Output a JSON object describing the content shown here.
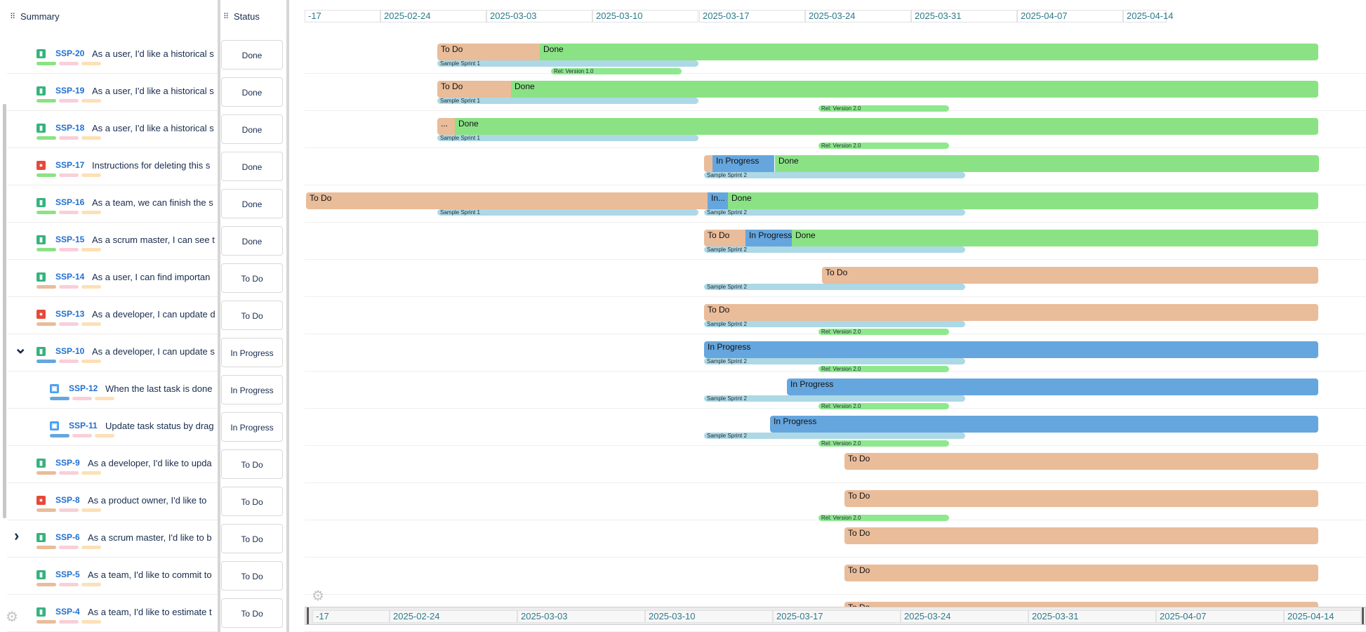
{
  "columns": {
    "summary": "Summary",
    "status": "Status"
  },
  "colors": {
    "todo": "#e9bc9a",
    "in_progress": "#66a6de",
    "done": "#8be285",
    "sprint": "#add8e6",
    "release": "#8ee88e",
    "story": "#36b37e",
    "bug": "#e5493a",
    "subtask": "#4ba0f0",
    "pill_pink": "#f9cfd9",
    "pill_peach": "#fde0b6"
  },
  "timeline": {
    "dates": [
      "-17",
      "2025-02-24",
      "2025-03-03",
      "2025-03-10",
      "2025-03-17",
      "2025-03-24",
      "2025-03-31",
      "2025-04-07",
      "2025-04-14"
    ]
  },
  "rows": [
    {
      "key": "SSP-20",
      "summary": "As a user, I'd like a historical s",
      "type": "story",
      "status": "Done",
      "caret": "",
      "indent": 0,
      "segments": [
        {
          "label": "To Do",
          "status": "todo"
        },
        {
          "label": "Done",
          "status": "done"
        }
      ],
      "sprints": [
        "Sample Sprint 1"
      ],
      "releases": [
        "Rel: Version 1.0"
      ]
    },
    {
      "key": "SSP-19",
      "summary": "As a user, I'd like a historical s",
      "type": "story",
      "status": "Done",
      "caret": "",
      "indent": 0,
      "segments": [
        {
          "label": "To Do",
          "status": "todo"
        },
        {
          "label": "Done",
          "status": "done"
        }
      ],
      "sprints": [
        "Sample Sprint 1"
      ],
      "releases": [
        "Rel: Version 2.0"
      ]
    },
    {
      "key": "SSP-18",
      "summary": "As a user, I'd like a historical s",
      "type": "story",
      "status": "Done",
      "caret": "",
      "indent": 0,
      "segments": [
        {
          "label": "...",
          "status": "todo"
        },
        {
          "label": "Done",
          "status": "done"
        }
      ],
      "sprints": [
        "Sample Sprint 1"
      ],
      "releases": [
        "Rel: Version 2.0"
      ]
    },
    {
      "key": "SSP-17",
      "summary": "Instructions for deleting this s",
      "type": "bug",
      "status": "Done",
      "caret": "",
      "indent": 0,
      "segments": [
        {
          "label": "",
          "status": "todo"
        },
        {
          "label": "In Progress",
          "status": "in_progress"
        },
        {
          "label": "Done",
          "status": "done"
        }
      ],
      "sprints": [
        "Sample Sprint 2"
      ],
      "releases": []
    },
    {
      "key": "SSP-16",
      "summary": "As a team, we can finish the s",
      "type": "story",
      "status": "Done",
      "caret": "",
      "indent": 0,
      "segments": [
        {
          "label": "To Do",
          "status": "todo"
        },
        {
          "label": "In...",
          "status": "in_progress"
        },
        {
          "label": "Done",
          "status": "done"
        }
      ],
      "sprints": [
        "Sample Sprint 1",
        "Sample Sprint 2"
      ],
      "releases": []
    },
    {
      "key": "SSP-15",
      "summary": "As a scrum master, I can see t",
      "type": "story",
      "status": "Done",
      "caret": "",
      "indent": 0,
      "segments": [
        {
          "label": "To Do",
          "status": "todo"
        },
        {
          "label": "In Progress",
          "status": "in_progress"
        },
        {
          "label": "Done",
          "status": "done"
        }
      ],
      "sprints": [
        "Sample Sprint 2"
      ],
      "releases": []
    },
    {
      "key": "SSP-14",
      "summary": "As a user, I can find importan",
      "type": "story",
      "status": "To Do",
      "caret": "",
      "indent": 0,
      "segments": [
        {
          "label": "To Do",
          "status": "todo"
        }
      ],
      "sprints": [
        "Sample Sprint 2"
      ],
      "releases": []
    },
    {
      "key": "SSP-13",
      "summary": "As a developer, I can update d",
      "type": "bug",
      "status": "To Do",
      "caret": "",
      "indent": 0,
      "segments": [
        {
          "label": "To Do",
          "status": "todo"
        }
      ],
      "sprints": [
        "Sample Sprint 2"
      ],
      "releases": [
        "Rel: Version 2.0"
      ]
    },
    {
      "key": "SSP-10",
      "summary": "As a developer, I can update s",
      "type": "story",
      "status": "In Progress",
      "caret": "expanded",
      "indent": 0,
      "segments": [
        {
          "label": "In Progress",
          "status": "in_progress"
        }
      ],
      "sprints": [
        "Sample Sprint 2"
      ],
      "releases": [
        "Rel: Version 2.0"
      ]
    },
    {
      "key": "SSP-12",
      "summary": "When the last task is done",
      "type": "subtask",
      "status": "In Progress",
      "caret": "",
      "indent": 1,
      "segments": [
        {
          "label": "In Progress",
          "status": "in_progress"
        }
      ],
      "sprints": [
        "Sample Sprint 2"
      ],
      "releases": [
        "Rel: Version 2.0"
      ]
    },
    {
      "key": "SSP-11",
      "summary": "Update task status by drag",
      "type": "subtask",
      "status": "In Progress",
      "caret": "",
      "indent": 1,
      "segments": [
        {
          "label": "In Progress",
          "status": "in_progress"
        }
      ],
      "sprints": [
        "Sample Sprint 2"
      ],
      "releases": [
        "Rel: Version 2.0"
      ]
    },
    {
      "key": "SSP-9",
      "summary": "As a developer, I'd like to upda",
      "type": "story",
      "status": "To Do",
      "caret": "",
      "indent": 0,
      "segments": [
        {
          "label": "To Do",
          "status": "todo"
        }
      ],
      "sprints": [],
      "releases": []
    },
    {
      "key": "SSP-8",
      "summary": "As a product owner, I'd like to",
      "type": "bug",
      "status": "To Do",
      "caret": "",
      "indent": 0,
      "segments": [
        {
          "label": "To Do",
          "status": "todo"
        }
      ],
      "sprints": [],
      "releases": [
        "Rel: Version 2.0"
      ]
    },
    {
      "key": "SSP-6",
      "summary": "As a scrum master, I'd like to b",
      "type": "story",
      "status": "To Do",
      "caret": "collapsed",
      "indent": 0,
      "segments": [
        {
          "label": "To Do",
          "status": "todo"
        }
      ],
      "sprints": [],
      "releases": []
    },
    {
      "key": "SSP-5",
      "summary": "As a team, I'd like to commit to",
      "type": "story",
      "status": "To Do",
      "caret": "",
      "indent": 0,
      "segments": [
        {
          "label": "To Do",
          "status": "todo"
        }
      ],
      "sprints": [],
      "releases": []
    },
    {
      "key": "SSP-4",
      "summary": "As a team, I'd like to estimate t",
      "type": "story",
      "status": "To Do",
      "caret": "",
      "indent": 0,
      "segments": [
        {
          "label": "To Do",
          "status": "todo"
        }
      ],
      "sprints": [],
      "releases": []
    }
  ]
}
